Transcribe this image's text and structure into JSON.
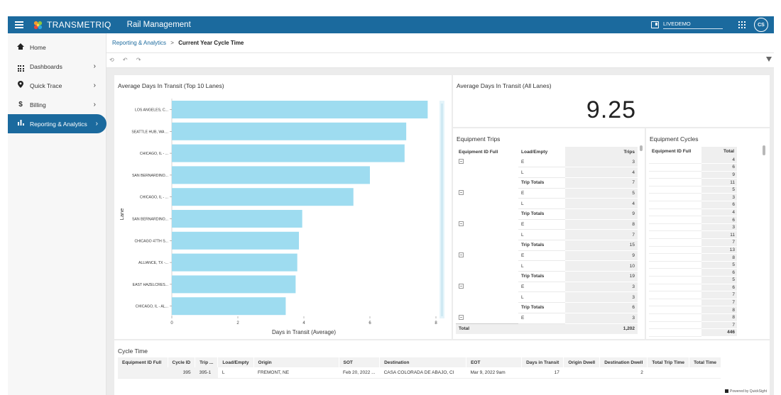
{
  "app": {
    "brand": "TRANSMETRIQ",
    "title": "Rail Management",
    "workspace": "LIVEDEMO",
    "user_initials": "CS",
    "brand_color": "#1b6a9e"
  },
  "sidebar": {
    "items": [
      {
        "label": "Home",
        "icon": "home-icon"
      },
      {
        "label": "Dashboards",
        "icon": "dashboard-grid-icon"
      },
      {
        "label": "Quick Trace",
        "icon": "map-pin-icon"
      },
      {
        "label": "Billing",
        "icon": "dollar-icon"
      },
      {
        "label": "Reporting & Analytics",
        "icon": "bar-chart-icon",
        "active": true
      }
    ]
  },
  "breadcrumb": {
    "parent": "Reporting & Analytics",
    "separator": ">",
    "current": "Current Year Cycle Time"
  },
  "toolbar": {
    "icons": [
      "refresh-icon",
      "undo-icon",
      "redo-icon",
      "filter-icon"
    ],
    "history_glyphs": "⟲ ↶ ↷"
  },
  "bar_panel": {
    "title": "Average Days In Transit (Top 10 Lanes)"
  },
  "kpi": {
    "title": "Average Days In Transit (All Lanes)",
    "value": "9.25"
  },
  "chart_data": {
    "type": "bar",
    "orientation": "horizontal",
    "categories": [
      "LOS ANGELES, C...",
      "SEATTLE HUB, WA ...",
      "CHICAGO, IL - ...",
      "SAN BERNARDINO...",
      "CHICAGO, IL - ...",
      "SAN BERNARDINO...",
      "CHICAGO 47TH S...",
      "ALLIANCE, TX -...",
      "EAST HAZELCRES...",
      "CHICAGO, IL - AL..."
    ],
    "values": [
      7.75,
      7.1,
      7.05,
      6.0,
      5.5,
      3.95,
      3.85,
      3.8,
      3.75,
      3.45
    ],
    "xlabel": "Days in Transit (Average)",
    "ylabel": "Lane",
    "xlim": [
      0,
      8
    ],
    "xticks": [
      "0",
      "2",
      "4",
      "6",
      "8"
    ],
    "bar_color": "#9edcf0",
    "grid": false
  },
  "trips": {
    "title": "Equipment Trips",
    "headers": {
      "equipment": "Equipment ID Full",
      "load_empty": "Load/Empty",
      "trips": "Trips"
    },
    "groups": [
      {
        "rows": [
          {
            "le": "E",
            "v": "3"
          },
          {
            "le": "L",
            "v": "4"
          },
          {
            "le": "Trip Totals",
            "v": "7"
          }
        ]
      },
      {
        "rows": [
          {
            "le": "E",
            "v": "5"
          },
          {
            "le": "L",
            "v": "4"
          },
          {
            "le": "Trip Totals",
            "v": "9"
          }
        ]
      },
      {
        "rows": [
          {
            "le": "E",
            "v": "8"
          },
          {
            "le": "L",
            "v": "7"
          },
          {
            "le": "Trip Totals",
            "v": "15"
          }
        ]
      },
      {
        "rows": [
          {
            "le": "E",
            "v": "9"
          },
          {
            "le": "L",
            "v": "10"
          },
          {
            "le": "Trip Totals",
            "v": "19"
          }
        ]
      },
      {
        "rows": [
          {
            "le": "E",
            "v": "3"
          },
          {
            "le": "L",
            "v": "3"
          },
          {
            "le": "Trip Totals",
            "v": "6"
          }
        ]
      },
      {
        "rows": [
          {
            "le": "E",
            "v": "3"
          }
        ]
      }
    ],
    "total_label": "Total",
    "total_value": "1,202"
  },
  "cycles": {
    "title": "Equipment Cycles",
    "headers": {
      "equipment": "Equipment ID Full",
      "total": "Total"
    },
    "values": [
      "4",
      "6",
      "9",
      "11",
      "5",
      "3",
      "6",
      "4",
      "6",
      "3",
      "11",
      "7",
      "13",
      "8",
      "5",
      "6",
      "5",
      "6",
      "7",
      "7",
      "8",
      "8",
      "7"
    ],
    "total": "446"
  },
  "cycle_time": {
    "title": "Cycle Time",
    "headers": [
      "Equipment ID Full",
      "Cycle ID",
      "Trip ...",
      "Load/Empty",
      "Origin",
      "SOT",
      "Destination",
      "EOT",
      "Days in Transit",
      "Origin Dwell",
      "Destination Dwell",
      "Total Trip Time",
      "Total Time"
    ],
    "rows": [
      [
        "",
        "395",
        "395-1",
        "L",
        "FREMONT, NE",
        "Feb 20, 2022 ...",
        "CASA COLORADA DE ABAJO, CI",
        "Mar 9, 2022 9am",
        "17",
        "",
        "2",
        "",
        ""
      ]
    ],
    "powered_by": "Powered by QuickSight"
  }
}
